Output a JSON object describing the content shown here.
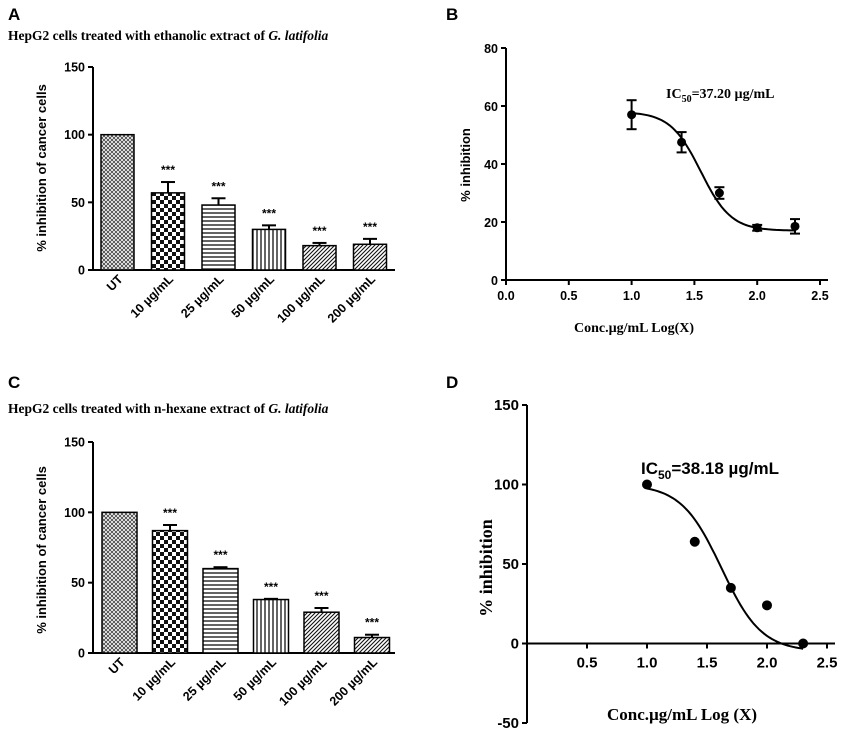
{
  "chart_data": [
    {
      "panel": "A",
      "type": "bar",
      "title": "HepG2 cells treated with ethanolic extract of ",
      "title_italic": "G. latifolia",
      "ylabel": "% inhibition of cancer cells",
      "xlabel": "",
      "ylim": [
        0,
        150
      ],
      "yticks": [
        0,
        50,
        100,
        150
      ],
      "categories": [
        "UT",
        "10 µg/mL",
        "25 µg/mL",
        "50 µg/mL",
        "100 µg/mL",
        "200 µg/mL"
      ],
      "values": [
        100,
        57,
        48,
        30,
        18,
        19
      ],
      "errors": [
        0,
        8,
        5,
        3,
        2,
        4
      ],
      "annotations": [
        "",
        "***",
        "***",
        "***",
        "***",
        "***"
      ],
      "patterns": [
        "crosshatch-fine",
        "checker",
        "horizontal",
        "vertical",
        "diagonal",
        "diagonal"
      ]
    },
    {
      "panel": "B",
      "type": "scatter",
      "title": "",
      "annotation": "IC50=37.20 µg/mL",
      "annotation_prefix": "IC",
      "annotation_sub": "50",
      "annotation_suffix": "=37.20 µg/mL",
      "xlabel": "Conc.µg/mL Log(X)",
      "ylabel": "% inhibition",
      "xlim": [
        0.0,
        2.5
      ],
      "ylim": [
        0,
        80
      ],
      "xticks": [
        "0.0",
        "0.5",
        "1.0",
        "1.5",
        "2.0",
        "2.5"
      ],
      "yticks": [
        "0",
        "20",
        "40",
        "60",
        "80"
      ],
      "x": [
        1.0,
        1.398,
        1.699,
        2.0,
        2.301
      ],
      "y": [
        57,
        47.5,
        30,
        18,
        18.5
      ],
      "errors": [
        5,
        3.5,
        2,
        1,
        2.5
      ],
      "fit": "sigmoid"
    },
    {
      "panel": "C",
      "type": "bar",
      "title": "HepG2 cells treated with n-hexane extract of ",
      "title_italic": "G. latifolia",
      "ylabel": "% inhibition of cancer cells",
      "xlabel": "",
      "ylim": [
        0,
        150
      ],
      "yticks": [
        0,
        50,
        100,
        150
      ],
      "categories": [
        "UT",
        "10 µg/mL",
        "25 µg/mL",
        "50 µg/mL",
        "100 µg/mL",
        "200 µg/mL"
      ],
      "values": [
        100,
        87,
        60,
        38,
        29,
        11
      ],
      "errors": [
        0,
        4,
        1,
        0.5,
        3,
        2
      ],
      "annotations": [
        "",
        "***",
        "***",
        "***",
        "***",
        "***"
      ],
      "patterns": [
        "crosshatch-fine",
        "checker",
        "horizontal",
        "vertical",
        "diagonal",
        "diagonal"
      ]
    },
    {
      "panel": "D",
      "type": "scatter",
      "title": "",
      "annotation": "IC50=38.18 µg/mL",
      "annotation_prefix": "IC",
      "annotation_sub": "50",
      "annotation_suffix": "=38.18 µg/mL",
      "xlabel": "Conc.µg/mL Log (X)",
      "ylabel": "% inhibition",
      "xlim": [
        0.0,
        2.5
      ],
      "ylim": [
        -50,
        150
      ],
      "xticks": [
        "0.5",
        "1.0",
        "1.5",
        "2.0",
        "2.5"
      ],
      "yticks": [
        "-50",
        "0",
        "50",
        "100",
        "150"
      ],
      "x": [
        1.0,
        1.398,
        1.699,
        2.0,
        2.301
      ],
      "y": [
        100,
        64,
        35,
        24,
        0
      ],
      "fit": "sigmoid"
    }
  ],
  "panel_letters": [
    "A",
    "B",
    "C",
    "D"
  ]
}
